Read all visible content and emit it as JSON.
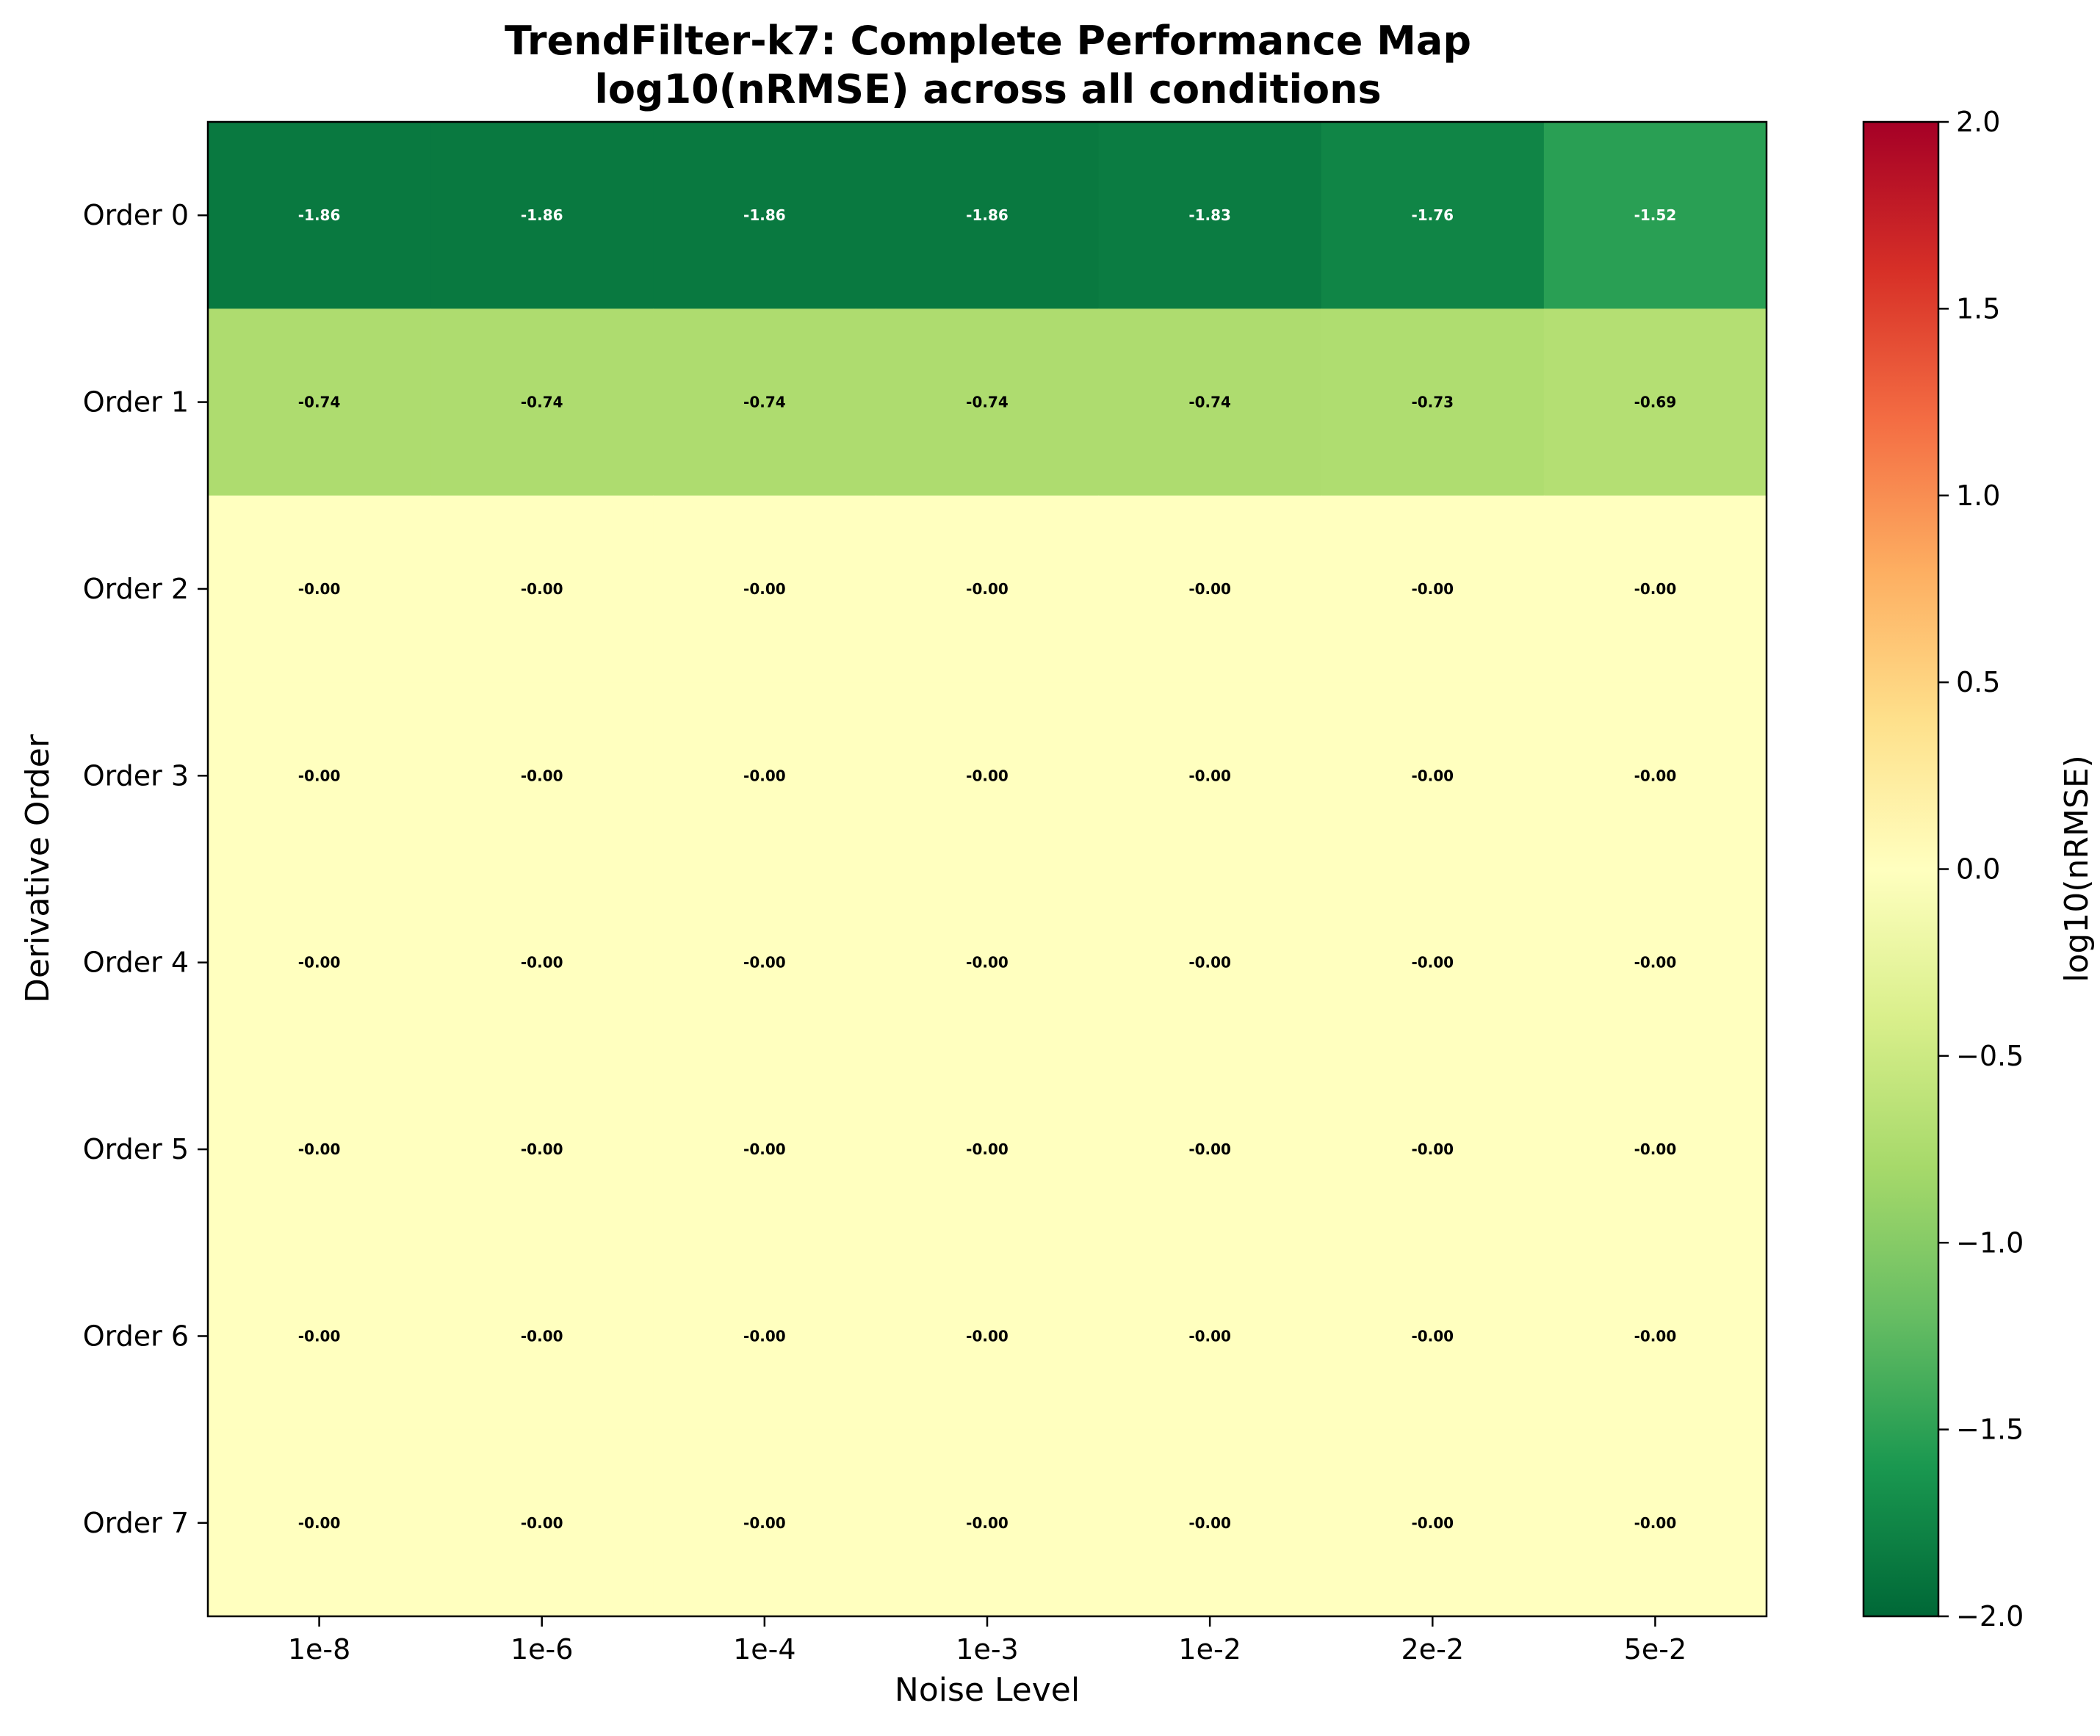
{
  "chart_data": {
    "type": "heatmap",
    "title_line1": "TrendFilter-k7: Complete Performance Map",
    "title_line2": "log10(nRMSE) across all conditions",
    "xlabel": "Noise Level",
    "ylabel": "Derivative Order",
    "x_categories": [
      "1e-8",
      "1e-6",
      "1e-4",
      "1e-3",
      "1e-2",
      "2e-2",
      "5e-2"
    ],
    "y_categories": [
      "Order 0",
      "Order 1",
      "Order 2",
      "Order 3",
      "Order 4",
      "Order 5",
      "Order 6",
      "Order 7"
    ],
    "values": [
      [
        -1.86,
        -1.86,
        -1.86,
        -1.86,
        -1.83,
        -1.76,
        -1.52
      ],
      [
        -0.74,
        -0.74,
        -0.74,
        -0.74,
        -0.74,
        -0.73,
        -0.69
      ],
      [
        -0.0,
        -0.0,
        -0.0,
        -0.0,
        -0.0,
        -0.0,
        -0.0
      ],
      [
        -0.0,
        -0.0,
        -0.0,
        -0.0,
        -0.0,
        -0.0,
        -0.0
      ],
      [
        -0.0,
        -0.0,
        -0.0,
        -0.0,
        -0.0,
        -0.0,
        -0.0
      ],
      [
        -0.0,
        -0.0,
        -0.0,
        -0.0,
        -0.0,
        -0.0,
        -0.0
      ],
      [
        -0.0,
        -0.0,
        -0.0,
        -0.0,
        -0.0,
        -0.0,
        -0.0
      ],
      [
        -0.0,
        -0.0,
        -0.0,
        -0.0,
        -0.0,
        -0.0,
        -0.0
      ]
    ],
    "value_labels": [
      [
        "-1.86",
        "-1.86",
        "-1.86",
        "-1.86",
        "-1.83",
        "-1.76",
        "-1.52"
      ],
      [
        "-0.74",
        "-0.74",
        "-0.74",
        "-0.74",
        "-0.74",
        "-0.73",
        "-0.69"
      ],
      [
        "-0.00",
        "-0.00",
        "-0.00",
        "-0.00",
        "-0.00",
        "-0.00",
        "-0.00"
      ],
      [
        "-0.00",
        "-0.00",
        "-0.00",
        "-0.00",
        "-0.00",
        "-0.00",
        "-0.00"
      ],
      [
        "-0.00",
        "-0.00",
        "-0.00",
        "-0.00",
        "-0.00",
        "-0.00",
        "-0.00"
      ],
      [
        "-0.00",
        "-0.00",
        "-0.00",
        "-0.00",
        "-0.00",
        "-0.00",
        "-0.00"
      ],
      [
        "-0.00",
        "-0.00",
        "-0.00",
        "-0.00",
        "-0.00",
        "-0.00",
        "-0.00"
      ],
      [
        "-0.00",
        "-0.00",
        "-0.00",
        "-0.00",
        "-0.00",
        "-0.00",
        "-0.00"
      ]
    ],
    "colormap": "RdYlGn_r",
    "colorbar": {
      "label": "log10(nRMSE)",
      "range": [
        -2.0,
        2.0
      ],
      "ticks": [
        2.0,
        1.5,
        1.0,
        0.5,
        0.0,
        -0.5,
        -1.0,
        -1.5,
        -2.0
      ],
      "tick_labels": [
        "2.0",
        "1.5",
        "1.0",
        "0.5",
        "0.0",
        "−0.5",
        "−1.0",
        "−1.5",
        "−2.0"
      ]
    },
    "grid": false
  }
}
